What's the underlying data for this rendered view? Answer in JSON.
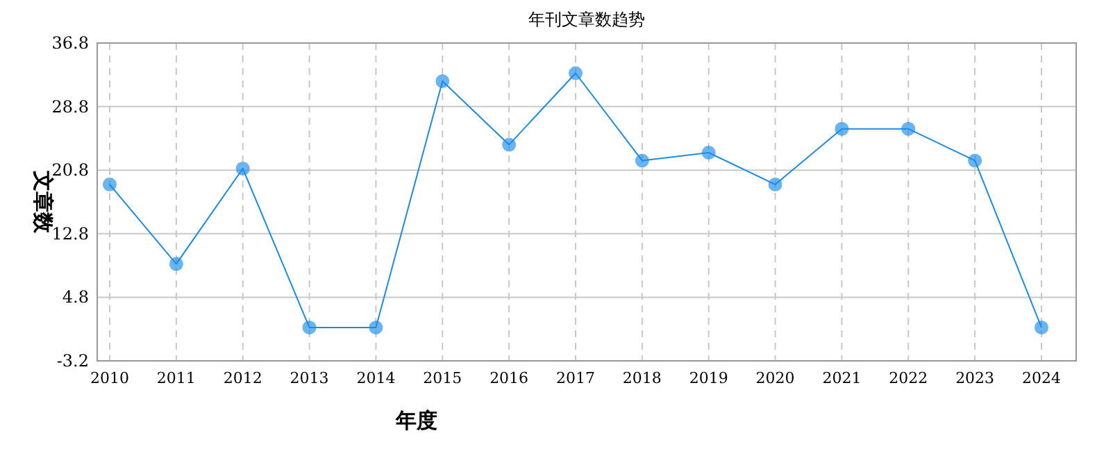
{
  "chart_data": {
    "type": "line",
    "title": "年刊文章数趋势",
    "xlabel": "年度",
    "ylabel": "文章数",
    "categories": [
      "2010",
      "2011",
      "2012",
      "2013",
      "2014",
      "2015",
      "2016",
      "2017",
      "2018",
      "2019",
      "2020",
      "2021",
      "2022",
      "2023",
      "2024"
    ],
    "series": [
      {
        "color": "#1a8ce8",
        "values": [
          19,
          9,
          21,
          1,
          1,
          32,
          24,
          33,
          22,
          23,
          19,
          26,
          26,
          22,
          1
        ]
      }
    ],
    "ylim": [
      -3.2,
      36.8
    ],
    "yticks": [
      -3.2,
      4.8,
      12.8,
      20.8,
      28.8,
      36.8
    ],
    "grid": true,
    "marker": "circle",
    "line_style": "solid"
  }
}
